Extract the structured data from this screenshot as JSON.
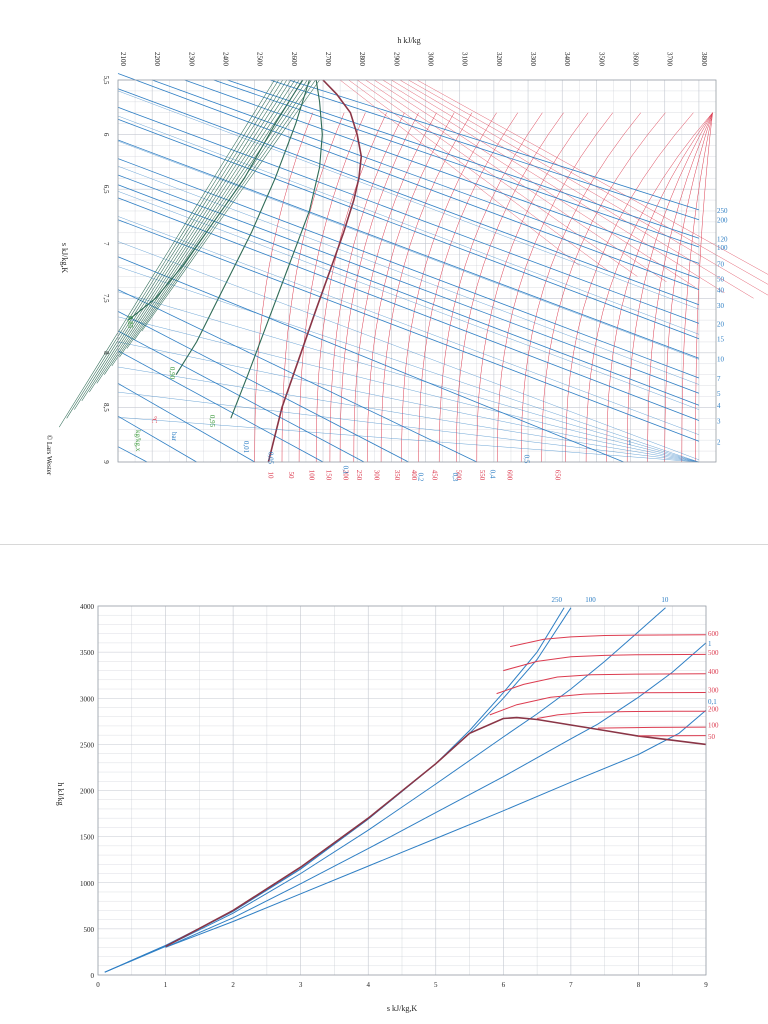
{
  "colors": {
    "pressure": "#2f7fc4",
    "temperature": "#dc3c50",
    "quality": "#2f6b56",
    "saturation": "#8a3546",
    "quality_label": "#3c9a3c",
    "grid": "#c4c8d0"
  },
  "chart_data": [
    {
      "type": "line",
      "title": "",
      "xlabel": "h kJ/kg",
      "ylabel": "s kJ/kg,K",
      "x_ticks": [
        "2100",
        "2200",
        "2300",
        "2400",
        "2500",
        "2600",
        "2700",
        "2800",
        "2900",
        "3000",
        "3100",
        "3200",
        "3300",
        "3400",
        "3500",
        "3600",
        "3700",
        "3800"
      ],
      "y_ticks": [
        "5,5",
        "6",
        "6,5",
        "7",
        "7,5",
        "8",
        "8,5",
        "9"
      ],
      "xlim": [
        2100,
        3850
      ],
      "ylim": [
        5.5,
        9
      ],
      "series": [
        {
          "name": "250",
          "kind": "pressure",
          "x": [
            2600,
            3800
          ],
          "y": [
            5.5,
            6.69
          ]
        },
        {
          "name": "200",
          "kind": "pressure",
          "x": [
            2545,
            3800
          ],
          "y": [
            5.5,
            6.78
          ]
        },
        {
          "name": "120",
          "kind": "pressure",
          "x": [
            2420,
            3800
          ],
          "y": [
            5.5,
            6.95
          ]
        },
        {
          "name": "100",
          "kind": "pressure",
          "x": [
            2380,
            3800
          ],
          "y": [
            5.5,
            7.03
          ]
        },
        {
          "name": "70",
          "kind": "pressure",
          "x": [
            2295,
            3800
          ],
          "y": [
            5.5,
            7.18
          ]
        },
        {
          "name": "50",
          "kind": "pressure",
          "x": [
            2200,
            3800
          ],
          "y": [
            5.5,
            7.32
          ]
        },
        {
          "name": "40",
          "kind": "pressure",
          "x": [
            2100,
            3800
          ],
          "y": [
            5.44,
            7.42
          ]
        },
        {
          "name": "30",
          "kind": "pressure",
          "x": [
            2100,
            3800
          ],
          "y": [
            5.58,
            7.56
          ]
        },
        {
          "name": "20",
          "kind": "pressure",
          "x": [
            2100,
            3800
          ],
          "y": [
            5.75,
            7.73
          ]
        },
        {
          "name": "15",
          "kind": "pressure",
          "x": [
            2100,
            3800
          ],
          "y": [
            5.86,
            7.87
          ]
        },
        {
          "name": "10",
          "kind": "pressure",
          "x": [
            2100,
            3800
          ],
          "y": [
            6.05,
            8.05
          ]
        },
        {
          "name": "7",
          "kind": "pressure",
          "x": [
            2100,
            3800
          ],
          "y": [
            6.22,
            8.23
          ]
        },
        {
          "name": "5",
          "kind": "pressure",
          "x": [
            2100,
            3800
          ],
          "y": [
            6.37,
            8.37
          ]
        },
        {
          "name": "4",
          "kind": "pressure",
          "x": [
            2100,
            3800
          ],
          "y": [
            6.46,
            8.48
          ]
        },
        {
          "name": "3",
          "kind": "pressure",
          "x": [
            2100,
            3800
          ],
          "y": [
            6.58,
            8.62
          ]
        },
        {
          "name": "2",
          "kind": "pressure",
          "x": [
            2100,
            3800
          ],
          "y": [
            6.78,
            8.81
          ]
        },
        {
          "name": "1",
          "kind": "pressure",
          "x": [
            2100,
            3580
          ],
          "y": [
            7.12,
            9.0
          ]
        },
        {
          "name": "0,5",
          "kind": "pressure",
          "x": [
            2100,
            3150
          ],
          "y": [
            7.42,
            9.0
          ]
        },
        {
          "name": "0,4",
          "kind": "pressure",
          "x": [
            2100,
            2950
          ],
          "y": [
            7.62,
            9.0
          ]
        },
        {
          "name": "0,3",
          "kind": "pressure",
          "x": [
            2100,
            2820
          ],
          "y": [
            7.8,
            9.0
          ]
        },
        {
          "name": "0,2",
          "kind": "pressure",
          "x": [
            2100,
            2700
          ],
          "y": [
            7.98,
            9.0
          ]
        },
        {
          "name": "0,1",
          "kind": "pressure",
          "x": [
            2100,
            2500
          ],
          "y": [
            8.28,
            9.0
          ]
        },
        {
          "name": "0,05",
          "kind": "pressure",
          "x": [
            2100,
            2330
          ],
          "y": [
            8.58,
            9.0
          ]
        },
        {
          "name": "0,01",
          "kind": "pressure",
          "x": [
            2100,
            2185
          ],
          "y": [
            8.86,
            9.0
          ]
        },
        {
          "name": "Saturation x=1",
          "kind": "saturation",
          "x": [
            2700,
            2740,
            2780,
            2800,
            2812,
            2805,
            2790,
            2760,
            2720,
            2680,
            2630,
            2580,
            2540
          ],
          "y": [
            5.5,
            5.63,
            5.8,
            6.0,
            6.2,
            6.4,
            6.6,
            6.9,
            7.25,
            7.6,
            8.05,
            8.5,
            9.0
          ]
        },
        {
          "name": "0,95",
          "kind": "quality",
          "x": [
            2680,
            2690,
            2698,
            2690,
            2660,
            2600,
            2540,
            2480,
            2430
          ],
          "y": [
            5.5,
            5.7,
            6.0,
            6.3,
            6.7,
            7.2,
            7.7,
            8.2,
            8.6
          ]
        },
        {
          "name": "0,90",
          "kind": "quality",
          "x": [
            2660,
            2620,
            2560,
            2490,
            2410,
            2330,
            2270
          ],
          "y": [
            5.5,
            5.9,
            6.4,
            6.9,
            7.4,
            7.9,
            8.2
          ]
        },
        {
          "name": "0,85",
          "kind": "quality",
          "x": [
            2640,
            2560,
            2470,
            2380,
            2290,
            2210,
            2130
          ],
          "y": [
            5.5,
            5.9,
            6.4,
            6.8,
            7.2,
            7.5,
            7.7
          ]
        }
      ],
      "right_labels": [
        "250",
        "200",
        "120",
        "100",
        "70",
        "50",
        "40",
        "30",
        "20",
        "15",
        "10",
        "7",
        "5",
        "4",
        "3",
        "2",
        "1"
      ],
      "bottom_temperature_labels": [
        "10",
        "50",
        "100",
        "150",
        "200",
        "250",
        "300",
        "350",
        "400",
        "450",
        "500",
        "550",
        "600",
        "650"
      ],
      "bottom_pressure_labels": [
        "0,05",
        "0,1",
        "0,2",
        "0,3",
        "0,4",
        "0,5"
      ],
      "quality_labels": [
        "0,85",
        "0,90",
        "0,95",
        "0,01"
      ],
      "legend": {
        "bar": "bar",
        "celsius": "°C",
        "quality": "kg/kg,x"
      },
      "copyright": "© Lars Wester"
    },
    {
      "type": "line",
      "title": "",
      "xlabel": "s kJ/kg,K",
      "ylabel": "h kJ/kg",
      "x_ticks": [
        "0",
        "1",
        "2",
        "3",
        "4",
        "5",
        "6",
        "7",
        "8",
        "9"
      ],
      "y_ticks": [
        "0",
        "500",
        "1000",
        "1500",
        "2000",
        "2500",
        "3000",
        "3500",
        "4000"
      ],
      "xlim": [
        0,
        9
      ],
      "ylim": [
        0,
        4000
      ],
      "series": [
        {
          "name": "250",
          "kind": "pressure",
          "x": [
            0.1,
            1,
            2,
            3,
            4,
            5,
            5.5,
            6,
            6.5,
            6.9
          ],
          "y": [
            30,
            320,
            690,
            1150,
            1690,
            2290,
            2650,
            3060,
            3500,
            3980
          ]
        },
        {
          "name": "100",
          "kind": "pressure",
          "x": [
            0.1,
            1,
            2,
            3,
            4,
            5,
            5.5,
            6,
            6.5,
            7.0
          ],
          "y": [
            30,
            320,
            690,
            1150,
            1690,
            2290,
            2620,
            3000,
            3420,
            3980
          ]
        },
        {
          "name": "10",
          "kind": "pressure",
          "x": [
            0.1,
            1,
            2,
            3,
            4,
            5,
            6,
            6.5,
            7,
            7.5,
            8.0,
            8.4
          ],
          "y": [
            30,
            310,
            670,
            1100,
            1570,
            2070,
            2580,
            2830,
            3100,
            3400,
            3720,
            3980
          ]
        },
        {
          "name": "1",
          "kind": "pressure",
          "x": [
            1.0,
            2,
            3,
            4,
            5,
            6,
            7,
            7.4,
            8,
            8.5,
            9.0
          ],
          "y": [
            300,
            620,
            990,
            1370,
            1760,
            2150,
            2560,
            2720,
            3010,
            3280,
            3600
          ]
        },
        {
          "name": "0,1",
          "kind": "pressure",
          "x": [
            1.0,
            2,
            3,
            4,
            5,
            6,
            7,
            8,
            8.6,
            9.0
          ],
          "y": [
            300,
            580,
            880,
            1180,
            1480,
            1780,
            2090,
            2390,
            2620,
            2870
          ]
        },
        {
          "name": "Saturation",
          "kind": "saturation",
          "x": [
            1.0,
            2,
            3,
            4,
            5,
            5.5,
            6.0,
            6.2,
            6.5,
            7.0,
            7.5,
            8.0,
            8.5,
            9.0
          ],
          "y": [
            310,
            700,
            1170,
            1700,
            2290,
            2620,
            2780,
            2790,
            2770,
            2710,
            2650,
            2590,
            2545,
            2500
          ]
        },
        {
          "name": "600",
          "kind": "temperature",
          "x": [
            6.1,
            6.6,
            7.0,
            7.5,
            8.0,
            9.0
          ],
          "y": [
            3560,
            3640,
            3665,
            3680,
            3685,
            3688
          ]
        },
        {
          "name": "500",
          "kind": "temperature",
          "x": [
            6.0,
            6.5,
            7.0,
            7.5,
            8.0,
            9.0
          ],
          "y": [
            3300,
            3400,
            3450,
            3465,
            3472,
            3475
          ]
        },
        {
          "name": "400",
          "kind": "temperature",
          "x": [
            5.9,
            6.3,
            6.8,
            7.3,
            8.0,
            9.0
          ],
          "y": [
            3050,
            3150,
            3230,
            3255,
            3262,
            3265
          ]
        },
        {
          "name": "300",
          "kind": "temperature",
          "x": [
            5.8,
            6.2,
            6.7,
            7.2,
            8.0,
            9.0
          ],
          "y": [
            2820,
            2930,
            3010,
            3045,
            3060,
            3062
          ]
        },
        {
          "name": "200",
          "kind": "temperature",
          "x": [
            6.5,
            6.8,
            7.2,
            7.8,
            8.5,
            9.0
          ],
          "y": [
            2780,
            2820,
            2845,
            2855,
            2858,
            2858
          ]
        },
        {
          "name": "100",
          "kind": "temperature",
          "x": [
            7.4,
            7.8,
            8.2,
            8.6,
            9.0
          ],
          "y": [
            2676,
            2680,
            2684,
            2686,
            2687
          ]
        },
        {
          "name": "50",
          "kind": "temperature",
          "x": [
            8.0,
            8.5,
            9.0
          ],
          "y": [
            2592,
            2594,
            2595
          ]
        }
      ],
      "top_labels": [
        "250",
        "100",
        "10"
      ],
      "right_labels": [
        "600",
        "1",
        "500",
        "400",
        "300",
        "0,1",
        "200",
        "100",
        "50"
      ]
    }
  ]
}
